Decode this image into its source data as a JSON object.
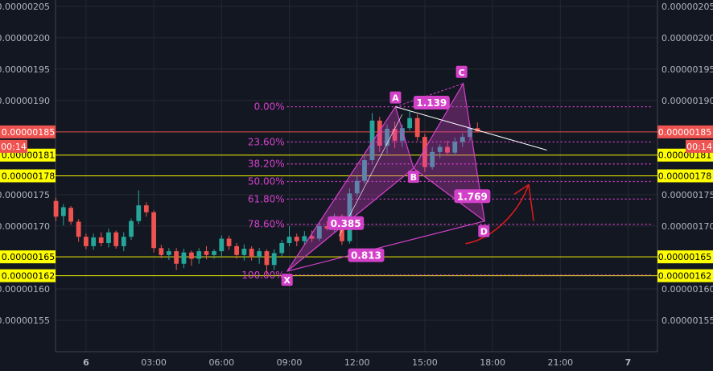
{
  "chart_data": {
    "type": "candlestick",
    "ylim": [
      1.5e-06,
      2.06e-06
    ],
    "y_ticks": [
      "0.00000205",
      "0.00000200",
      "0.00000195",
      "0.00000190",
      "0.00000175",
      "0.00000170",
      "0.00000160",
      "0.00000155"
    ],
    "x_ticks": [
      {
        "label": "6",
        "t": 0
      },
      {
        "label": "03:00",
        "t": 3
      },
      {
        "label": "06:00",
        "t": 6
      },
      {
        "label": "09:00",
        "t": 9
      },
      {
        "label": "12:00",
        "t": 12
      },
      {
        "label": "15:00",
        "t": 15
      },
      {
        "label": "18:00",
        "t": 18
      },
      {
        "label": "21:00",
        "t": 21
      },
      {
        "label": "7",
        "t": 24
      }
    ],
    "x_range": [
      -1.35,
      25.3
    ],
    "grid": true,
    "colors": {
      "up": "#26a69a",
      "down": "#ef5350",
      "pattern": "#d341c9",
      "hline_yellow": "#ffff00",
      "current_price": "#ef5350",
      "arrow": "#e31b1b",
      "trend": "#ffffff"
    },
    "candles": [
      {
        "t": -1.33,
        "o": 1.74,
        "h": 1.745,
        "l": 1.708,
        "c": 1.715
      },
      {
        "t": -1.0,
        "o": 1.716,
        "h": 1.735,
        "l": 1.701,
        "c": 1.73
      },
      {
        "t": -0.67,
        "o": 1.729,
        "h": 1.732,
        "l": 1.702,
        "c": 1.707
      },
      {
        "t": -0.33,
        "o": 1.707,
        "h": 1.711,
        "l": 1.675,
        "c": 1.683
      },
      {
        "t": 0.0,
        "o": 1.683,
        "h": 1.688,
        "l": 1.663,
        "c": 1.668
      },
      {
        "t": 0.33,
        "o": 1.668,
        "h": 1.688,
        "l": 1.662,
        "c": 1.682
      },
      {
        "t": 0.67,
        "o": 1.682,
        "h": 1.69,
        "l": 1.668,
        "c": 1.673
      },
      {
        "t": 1.0,
        "o": 1.673,
        "h": 1.696,
        "l": 1.666,
        "c": 1.69
      },
      {
        "t": 1.33,
        "o": 1.69,
        "h": 1.693,
        "l": 1.664,
        "c": 1.668
      },
      {
        "t": 1.67,
        "o": 1.668,
        "h": 1.69,
        "l": 1.66,
        "c": 1.683
      },
      {
        "t": 2.0,
        "o": 1.683,
        "h": 1.712,
        "l": 1.678,
        "c": 1.708
      },
      {
        "t": 2.33,
        "o": 1.708,
        "h": 1.757,
        "l": 1.703,
        "c": 1.733
      },
      {
        "t": 2.67,
        "o": 1.733,
        "h": 1.738,
        "l": 1.715,
        "c": 1.722
      },
      {
        "t": 3.0,
        "o": 1.722,
        "h": 1.725,
        "l": 1.658,
        "c": 1.665
      },
      {
        "t": 3.33,
        "o": 1.665,
        "h": 1.67,
        "l": 1.649,
        "c": 1.654
      },
      {
        "t": 3.67,
        "o": 1.654,
        "h": 1.665,
        "l": 1.646,
        "c": 1.66
      },
      {
        "t": 4.0,
        "o": 1.66,
        "h": 1.665,
        "l": 1.63,
        "c": 1.64
      },
      {
        "t": 4.33,
        "o": 1.64,
        "h": 1.664,
        "l": 1.633,
        "c": 1.658
      },
      {
        "t": 4.67,
        "o": 1.658,
        "h": 1.661,
        "l": 1.637,
        "c": 1.648
      },
      {
        "t": 5.0,
        "o": 1.648,
        "h": 1.665,
        "l": 1.64,
        "c": 1.66
      },
      {
        "t": 5.33,
        "o": 1.66,
        "h": 1.668,
        "l": 1.647,
        "c": 1.654
      },
      {
        "t": 5.67,
        "o": 1.654,
        "h": 1.663,
        "l": 1.648,
        "c": 1.66
      },
      {
        "t": 6.0,
        "o": 1.66,
        "h": 1.685,
        "l": 1.65,
        "c": 1.68
      },
      {
        "t": 6.33,
        "o": 1.68,
        "h": 1.685,
        "l": 1.662,
        "c": 1.668
      },
      {
        "t": 6.67,
        "o": 1.668,
        "h": 1.673,
        "l": 1.648,
        "c": 1.654
      },
      {
        "t": 7.0,
        "o": 1.654,
        "h": 1.671,
        "l": 1.645,
        "c": 1.664
      },
      {
        "t": 7.33,
        "o": 1.664,
        "h": 1.668,
        "l": 1.645,
        "c": 1.651
      },
      {
        "t": 7.67,
        "o": 1.651,
        "h": 1.665,
        "l": 1.64,
        "c": 1.66
      },
      {
        "t": 8.0,
        "o": 1.66,
        "h": 1.663,
        "l": 1.62,
        "c": 1.638
      },
      {
        "t": 8.33,
        "o": 1.638,
        "h": 1.663,
        "l": 1.63,
        "c": 1.657
      },
      {
        "t": 8.67,
        "o": 1.657,
        "h": 1.678,
        "l": 1.652,
        "c": 1.673
      },
      {
        "t": 9.0,
        "o": 1.673,
        "h": 1.7,
        "l": 1.668,
        "c": 1.683
      },
      {
        "t": 9.33,
        "o": 1.683,
        "h": 1.688,
        "l": 1.668,
        "c": 1.676
      },
      {
        "t": 9.67,
        "o": 1.676,
        "h": 1.692,
        "l": 1.67,
        "c": 1.684
      },
      {
        "t": 10.0,
        "o": 1.684,
        "h": 1.693,
        "l": 1.674,
        "c": 1.68
      },
      {
        "t": 10.33,
        "o": 1.68,
        "h": 1.705,
        "l": 1.676,
        "c": 1.7
      },
      {
        "t": 10.67,
        "o": 1.7,
        "h": 1.708,
        "l": 1.693,
        "c": 1.696
      },
      {
        "t": 11.0,
        "o": 1.696,
        "h": 1.72,
        "l": 1.69,
        "c": 1.716
      },
      {
        "t": 11.33,
        "o": 1.716,
        "h": 1.719,
        "l": 1.67,
        "c": 1.676
      },
      {
        "t": 11.67,
        "o": 1.676,
        "h": 1.76,
        "l": 1.672,
        "c": 1.752
      },
      {
        "t": 12.0,
        "o": 1.752,
        "h": 1.78,
        "l": 1.746,
        "c": 1.772
      },
      {
        "t": 12.33,
        "o": 1.772,
        "h": 1.812,
        "l": 1.768,
        "c": 1.805
      },
      {
        "t": 12.67,
        "o": 1.805,
        "h": 1.88,
        "l": 1.798,
        "c": 1.868
      },
      {
        "t": 13.0,
        "o": 1.868,
        "h": 1.874,
        "l": 1.818,
        "c": 1.828
      },
      {
        "t": 13.33,
        "o": 1.828,
        "h": 1.862,
        "l": 1.815,
        "c": 1.855
      },
      {
        "t": 13.67,
        "o": 1.855,
        "h": 1.866,
        "l": 1.824,
        "c": 1.836
      },
      {
        "t": 14.0,
        "o": 1.836,
        "h": 1.862,
        "l": 1.826,
        "c": 1.856
      },
      {
        "t": 14.33,
        "o": 1.856,
        "h": 1.884,
        "l": 1.852,
        "c": 1.872
      },
      {
        "t": 14.67,
        "o": 1.872,
        "h": 1.878,
        "l": 1.836,
        "c": 1.842
      },
      {
        "t": 15.0,
        "o": 1.842,
        "h": 1.847,
        "l": 1.786,
        "c": 1.794
      },
      {
        "t": 15.33,
        "o": 1.794,
        "h": 1.826,
        "l": 1.79,
        "c": 1.818
      },
      {
        "t": 15.67,
        "o": 1.818,
        "h": 1.83,
        "l": 1.808,
        "c": 1.826
      },
      {
        "t": 16.0,
        "o": 1.826,
        "h": 1.836,
        "l": 1.812,
        "c": 1.817
      },
      {
        "t": 16.33,
        "o": 1.817,
        "h": 1.841,
        "l": 1.812,
        "c": 1.834
      },
      {
        "t": 16.67,
        "o": 1.834,
        "h": 1.848,
        "l": 1.826,
        "c": 1.842
      },
      {
        "t": 17.0,
        "o": 1.842,
        "h": 1.862,
        "l": 1.836,
        "c": 1.856
      },
      {
        "t": 17.33,
        "o": 1.856,
        "h": 1.865,
        "l": 1.849,
        "c": 1.851
      }
    ],
    "fib_levels": [
      {
        "label": "0.00%",
        "price": 1.89
      },
      {
        "label": "23.60%",
        "price": 1.834
      },
      {
        "label": "38.20%",
        "price": 1.799
      },
      {
        "label": "50.00%",
        "price": 1.771
      },
      {
        "label": "61.80%",
        "price": 1.743
      },
      {
        "label": "78.60%",
        "price": 1.703
      },
      {
        "label": "100.00%",
        "price": 1.622
      }
    ],
    "pattern_points": {
      "X": {
        "t": 8.9,
        "p": 1.628
      },
      "A": {
        "t": 13.7,
        "p": 1.89
      },
      "B": {
        "t": 14.5,
        "p": 1.792
      },
      "C": {
        "t": 16.7,
        "p": 1.927
      },
      "D": {
        "t": 17.65,
        "p": 1.708
      }
    },
    "ratios": [
      {
        "label": "1.139",
        "t": 15.3,
        "p": 1.896
      },
      {
        "label": "1.769",
        "t": 17.1,
        "p": 1.747
      },
      {
        "label": "0.385",
        "t": 11.5,
        "p": 1.704
      },
      {
        "label": "0.813",
        "t": 12.4,
        "p": 1.653
      }
    ],
    "trend_line": {
      "t1": 13.7,
      "p1": 1.89,
      "t2": 20.4,
      "p2": 1.821
    },
    "arrow": {
      "t1": 16.8,
      "p1": 1.672,
      "t2": 19.6,
      "p2": 1.766
    },
    "horizontal_lines": [
      {
        "price": 1.85,
        "color": "#ef5350",
        "label": "0.00000185",
        "label_bg": "#ef5350",
        "label_fg": "#ffffff"
      },
      {
        "price": 1.813,
        "color": "#ffff00",
        "label": "0.00000181",
        "label_bg": "#ffff00",
        "label_fg": "#000000"
      },
      {
        "price": 1.78,
        "color": "#ffff00",
        "label": "0.00000178",
        "label_bg": "#ffff00",
        "label_fg": "#000000"
      },
      {
        "price": 1.651,
        "color": "#ffff00",
        "label": "0.00000165",
        "label_bg": "#ffff00",
        "label_fg": "#000000"
      },
      {
        "price": 1.621,
        "color": "#ffff00",
        "label": "0.00000162",
        "label_bg": "#ffff00",
        "label_fg": "#000000"
      }
    ],
    "countdown": "00:14"
  }
}
